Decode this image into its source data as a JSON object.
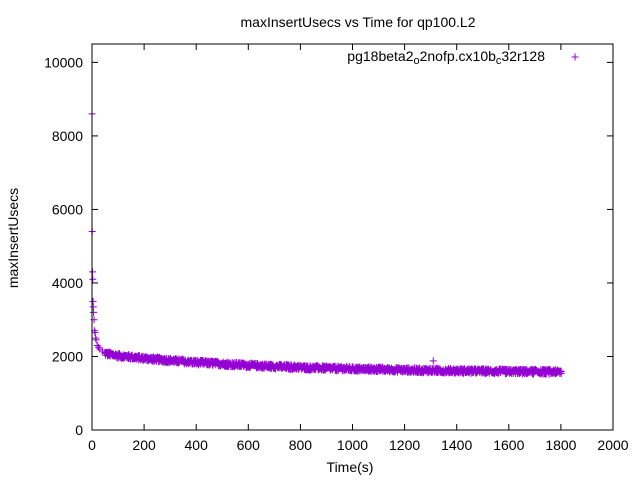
{
  "chart_data": {
    "type": "scatter",
    "title": "maxInsertUsecs vs Time for qp100.L2",
    "xlabel": "Time(s)",
    "ylabel": "maxInsertUsecs",
    "xlim": [
      0,
      2000
    ],
    "ylim": [
      0,
      10500
    ],
    "xticks": [
      0,
      200,
      400,
      600,
      800,
      1000,
      1200,
      1400,
      1600,
      1800,
      2000
    ],
    "yticks": [
      0,
      2000,
      4000,
      6000,
      8000,
      10000
    ],
    "grid": false,
    "legend_position": "top-right",
    "series": [
      {
        "name": "pg18beta2_o2nofp.cx10b_c32r128",
        "name_parts": {
          "a": "pg18beta2",
          "sub1": "o",
          "b": "2nofp.cx10b",
          "sub2": "c",
          "c": "32r128"
        },
        "marker": "plus",
        "color": "#9400d3",
        "sample_interval_s": 5,
        "points": [
          [
            0,
            8600
          ],
          [
            1,
            5400
          ],
          [
            2,
            4300
          ],
          [
            3,
            4100
          ],
          [
            4,
            3500
          ],
          [
            5,
            3350
          ],
          [
            6,
            3200
          ],
          [
            8,
            3000
          ],
          [
            10,
            2700
          ],
          [
            12,
            2650
          ],
          [
            14,
            2500
          ],
          [
            16,
            2450
          ],
          [
            20,
            2300
          ],
          [
            25,
            2250
          ],
          [
            30,
            2200
          ],
          [
            40,
            2150
          ],
          [
            50,
            2100
          ],
          [
            1310,
            1880
          ]
        ],
        "trend": [
          [
            50,
            2080
          ],
          [
            100,
            2020
          ],
          [
            200,
            1950
          ],
          [
            300,
            1890
          ],
          [
            400,
            1840
          ],
          [
            500,
            1800
          ],
          [
            600,
            1760
          ],
          [
            700,
            1730
          ],
          [
            800,
            1700
          ],
          [
            900,
            1680
          ],
          [
            1000,
            1660
          ],
          [
            1100,
            1650
          ],
          [
            1200,
            1630
          ],
          [
            1300,
            1620
          ],
          [
            1400,
            1610
          ],
          [
            1500,
            1600
          ],
          [
            1600,
            1590
          ],
          [
            1700,
            1585
          ],
          [
            1800,
            1580
          ]
        ],
        "spread": 80
      }
    ]
  },
  "colors": {
    "series": "#9400d3",
    "frame": "#000000",
    "background": "#ffffff"
  }
}
